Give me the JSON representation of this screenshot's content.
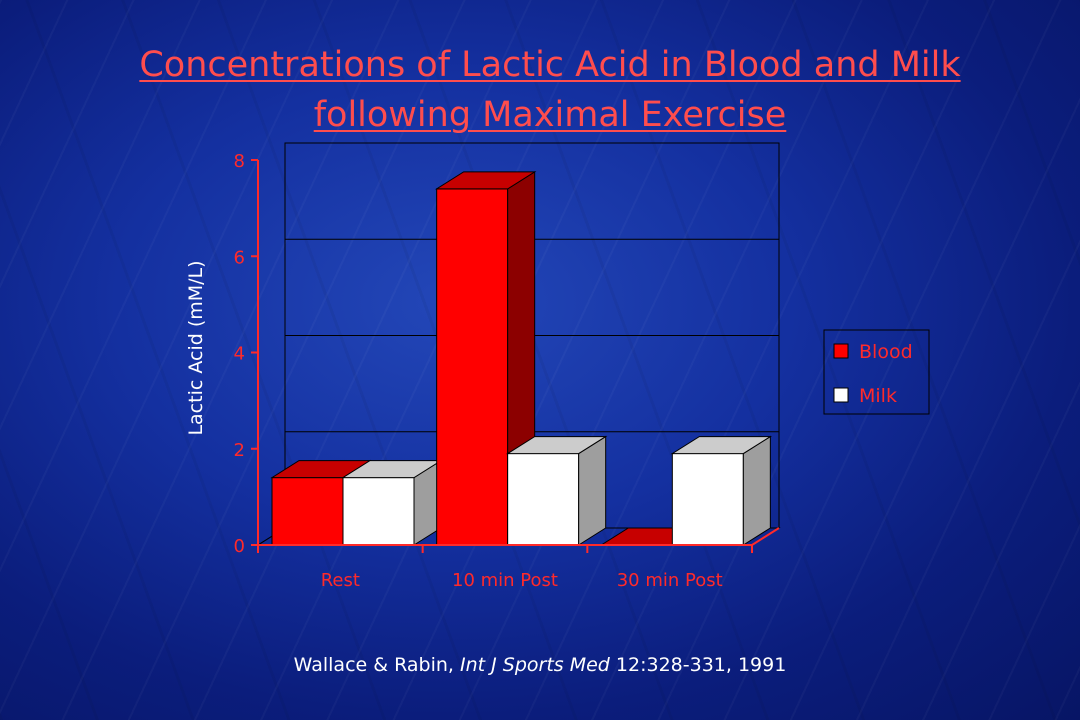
{
  "slide": {
    "title": "Concentrations of Lactic Acid in Blood and Milk following Maximal Exercise",
    "citation": {
      "authors": "Wallace & Rabin,",
      "journal": "Int J Sports Med",
      "details": "12:328-331, 1991"
    }
  },
  "colors": {
    "blood": "#ff0000",
    "milk": "#ffffff",
    "axis": "#ff2a2a",
    "ylabel": "#ffffff"
  },
  "chart_data": {
    "type": "bar",
    "style": "3d-clustered-column",
    "categories": [
      "Rest",
      "10 min Post",
      "30 min Post"
    ],
    "series": [
      {
        "name": "Blood",
        "values": [
          1.4,
          7.4,
          0
        ]
      },
      {
        "name": "Milk",
        "values": [
          1.4,
          1.9,
          1.9
        ]
      }
    ],
    "ylabel": "Lactic Acid (mM/L)",
    "xlabel": "",
    "ylim": [
      0,
      8
    ],
    "yticks": [
      0,
      2,
      4,
      6,
      8
    ],
    "grid": true,
    "legend_position": "right"
  }
}
